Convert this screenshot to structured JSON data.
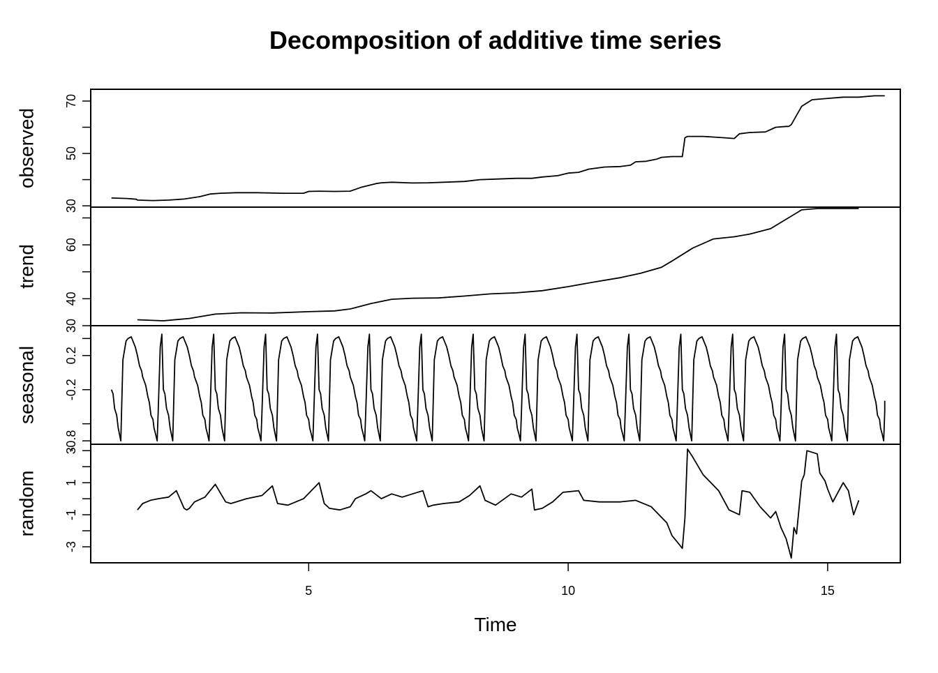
{
  "chart_data": {
    "type": "line",
    "title": "Decomposition of additive time series",
    "xlabel": "Time",
    "xlim": [
      0.8,
      16.4
    ],
    "x_ticks": [
      5,
      10,
      15
    ],
    "x_tick_labels": [
      "5",
      "10",
      "15"
    ],
    "grid": false,
    "legend": "none",
    "colors": {
      "line": "#000000",
      "axis": "#000000",
      "background": "#ffffff"
    },
    "panels": [
      {
        "name": "observed",
        "ylabel": "observed",
        "ylim": [
          29.5,
          74.5
        ],
        "y_ticks": [
          30,
          40,
          50,
          60,
          70
        ],
        "y_tick_labels": [
          "30",
          "",
          "50",
          "",
          "70"
        ],
        "x": [
          1.2,
          1.5,
          1.68,
          1.7,
          2.0,
          2.3,
          2.6,
          2.9,
          3.1,
          3.3,
          3.6,
          4.0,
          4.5,
          4.9,
          5.0,
          5.2,
          5.5,
          5.8,
          6.0,
          6.3,
          6.4,
          6.6,
          7.0,
          7.3,
          7.6,
          8.0,
          8.3,
          8.6,
          9.0,
          9.3,
          9.5,
          9.8,
          10.0,
          10.2,
          10.4,
          10.7,
          11.0,
          11.2,
          11.3,
          11.5,
          11.7,
          11.8,
          12.0,
          12.2,
          12.25,
          12.3,
          12.6,
          13.0,
          13.2,
          13.3,
          13.5,
          13.8,
          14.0,
          14.2,
          14.25,
          14.3,
          14.5,
          14.7,
          15.0,
          15.3,
          15.6,
          15.9,
          16.1
        ],
        "values": [
          33,
          32.8,
          32.5,
          32.2,
          32,
          32.2,
          32.6,
          33.5,
          34.5,
          34.8,
          35,
          35,
          34.8,
          34.8,
          35.5,
          35.6,
          35.5,
          35.6,
          37,
          38.5,
          38.8,
          39,
          38.7,
          38.8,
          39,
          39.3,
          40,
          40.2,
          40.5,
          40.5,
          41,
          41.5,
          42.5,
          42.8,
          44,
          44.8,
          45,
          45.5,
          46.8,
          47,
          47.8,
          48.5,
          48.8,
          48.8,
          56,
          56.5,
          56.5,
          56,
          55.7,
          57.5,
          58,
          58.2,
          60,
          60.3,
          60.3,
          61,
          68,
          70.5,
          71,
          71.5,
          71.5,
          72,
          72
        ]
      },
      {
        "name": "trend",
        "ylabel": "trend",
        "ylim": [
          30,
          74
        ],
        "y_ticks": [
          30,
          40,
          50,
          60,
          70
        ],
        "y_tick_labels": [
          "30",
          "40",
          "",
          "60",
          ""
        ],
        "x": [
          1.7,
          2.2,
          2.7,
          3.2,
          3.7,
          4.3,
          5.0,
          5.5,
          5.8,
          6.2,
          6.6,
          7.0,
          7.5,
          8.0,
          8.5,
          9.0,
          9.5,
          10.0,
          10.5,
          11.0,
          11.4,
          11.8,
          12.0,
          12.4,
          12.8,
          13.2,
          13.5,
          13.9,
          14.2,
          14.5,
          14.8,
          15.0,
          15.3,
          15.6
        ],
        "values": [
          32.2,
          31.8,
          32.7,
          34.3,
          34.8,
          34.7,
          35.2,
          35.5,
          36.2,
          38.2,
          39.8,
          40.2,
          40.3,
          41,
          41.8,
          42.2,
          43,
          44.5,
          46.2,
          47.8,
          49.5,
          51.7,
          54,
          58.8,
          62.2,
          63,
          64,
          66,
          69.5,
          73,
          76.4,
          77.3,
          77.8,
          78.2
        ]
      },
      {
        "name": "seasonal",
        "ylabel": "seasonal",
        "ylim": [
          -0.84,
          0.55
        ],
        "y_ticks": [
          -0.8,
          -0.6,
          -0.2,
          0.2,
          0.4
        ],
        "y_tick_labels": [
          "-0.8",
          "",
          "-0.2",
          "0.2",
          ""
        ],
        "period_start": 1.2,
        "period": 1,
        "cycle_offsets": [
          0,
          0.03,
          0.06,
          0.1,
          0.13,
          0.18,
          0.22,
          0.28,
          0.32,
          0.38,
          0.46,
          0.5,
          0.54,
          0.58,
          0.6,
          0.66,
          0.7,
          0.73,
          0.76,
          0.8,
          0.82,
          0.85,
          0.88,
          0.9,
          0.94,
          0.97
        ],
        "cycle_values": [
          -0.2,
          -0.25,
          -0.42,
          -0.5,
          -0.65,
          -0.8,
          0.15,
          0.37,
          0.4,
          0.42,
          0.3,
          0.2,
          0.08,
          0.02,
          -0.05,
          -0.15,
          -0.28,
          -0.35,
          -0.5,
          -0.55,
          -0.65,
          -0.72,
          -0.8,
          -0.45,
          0.3,
          0.45
        ],
        "end": 16.1,
        "end_value": -0.33
      },
      {
        "name": "random",
        "ylabel": "random",
        "ylim": [
          -4,
          3.4
        ],
        "y_ticks": [
          -3,
          -2,
          -1,
          0,
          1,
          2,
          3
        ],
        "y_tick_labels": [
          "-3",
          "",
          "-1",
          "",
          "1",
          "",
          "3"
        ],
        "x": [
          1.7,
          1.8,
          1.95,
          2.1,
          2.3,
          2.45,
          2.6,
          2.65,
          2.7,
          2.8,
          3.0,
          3.2,
          3.4,
          3.5,
          3.8,
          4.1,
          4.3,
          4.4,
          4.6,
          4.9,
          5.2,
          5.3,
          5.4,
          5.6,
          5.8,
          5.9,
          6.1,
          6.2,
          6.4,
          6.6,
          6.8,
          7.0,
          7.2,
          7.3,
          7.4,
          7.6,
          7.9,
          8.1,
          8.3,
          8.4,
          8.6,
          8.9,
          9.1,
          9.3,
          9.35,
          9.5,
          9.7,
          9.9,
          10.2,
          10.3,
          10.6,
          11.0,
          11.3,
          11.6,
          11.9,
          12.0,
          12.1,
          12.2,
          12.25,
          12.3,
          12.4,
          12.6,
          12.9,
          13.1,
          13.3,
          13.35,
          13.5,
          13.7,
          13.9,
          14.0,
          14.1,
          14.2,
          14.3,
          14.35,
          14.4,
          14.5,
          14.55,
          14.6,
          14.8,
          14.85,
          14.95,
          15.0,
          15.1,
          15.3,
          15.4,
          15.5,
          15.6
        ],
        "values": [
          -0.7,
          -0.3,
          -0.1,
          0,
          0.1,
          0.5,
          -0.6,
          -0.7,
          -0.6,
          -0.2,
          0.1,
          0.9,
          -0.2,
          -0.3,
          0,
          0.2,
          0.8,
          -0.3,
          -0.4,
          0,
          1,
          -0.3,
          -0.6,
          -0.7,
          -0.5,
          0,
          0.3,
          0.5,
          0,
          0.3,
          0.1,
          0.3,
          0.5,
          -0.5,
          -0.4,
          -0.3,
          -0.2,
          0.2,
          0.8,
          -0.1,
          -0.4,
          0.3,
          0.1,
          0.6,
          -0.7,
          -0.6,
          -0.2,
          0.4,
          0.5,
          -0.1,
          -0.2,
          -0.2,
          -0.1,
          -0.5,
          -1.5,
          -2.3,
          -2.7,
          -3.1,
          -1.2,
          3.1,
          2.6,
          1.5,
          0.5,
          -0.7,
          -1,
          0.5,
          0.4,
          -0.5,
          -1.2,
          -0.8,
          -1.8,
          -2.5,
          -3.7,
          -1.8,
          -2.2,
          1.1,
          1.5,
          3,
          2.8,
          1.6,
          1.1,
          0.6,
          -0.2,
          1,
          0.5,
          -1,
          -0.1
        ]
      }
    ]
  }
}
